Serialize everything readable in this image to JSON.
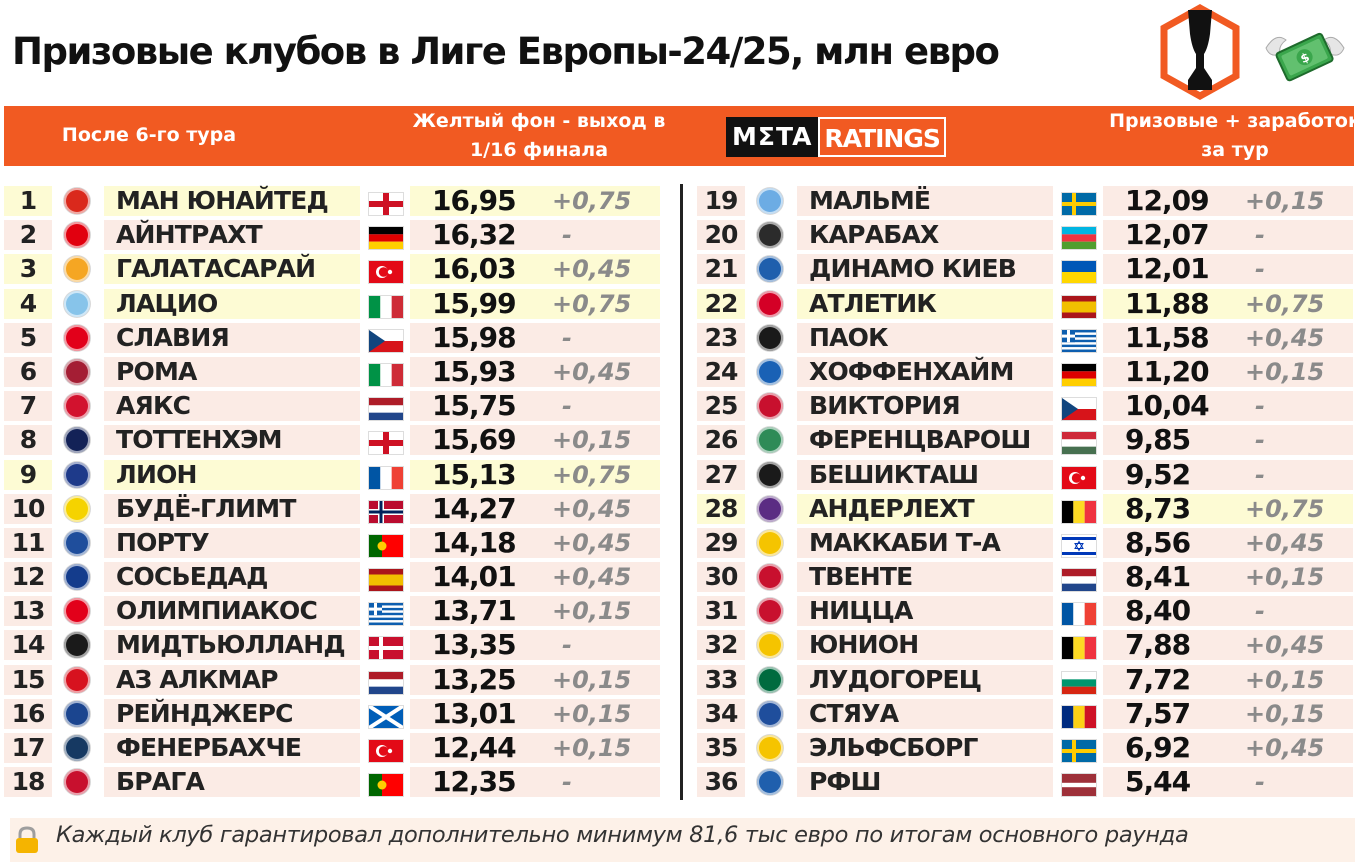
{
  "title": "Призовые клубов в Лиге Европы-24/25, млн евро",
  "header": {
    "after_round": "После 6-го тура",
    "yellow_note_line1": "Желтый фон - выход в",
    "yellow_note_line2": "1/16 финала",
    "brand_part1": "MΣTA",
    "brand_part2": "RATINGS",
    "prize_line1": "Призовые + заработок",
    "prize_line2": "за тур"
  },
  "colors": {
    "accent": "#f15a22",
    "row_yellow": "#fdfbd4",
    "row_pink": "#fbebe5"
  },
  "footer": {
    "icon": "lock-icon",
    "text": "Каждый клуб гарантировал дополнительно минимум 81,6 тыс евро по итогам основного раунда"
  },
  "rows": [
    {
      "rank": "1",
      "club": "МАН ЮНАЙТЕД",
      "value": "16,95",
      "inc": "+0,75",
      "hl": true,
      "crest": "#da291c",
      "flag": "eng"
    },
    {
      "rank": "2",
      "club": "АЙНТРАХТ",
      "value": "16,32",
      "inc": "-",
      "hl": false,
      "crest": "#e1000f",
      "flag": "de"
    },
    {
      "rank": "3",
      "club": "ГАЛАТАСАРАЙ",
      "value": "16,03",
      "inc": "+0,45",
      "hl": true,
      "crest": "#f5a623",
      "flag": "tr"
    },
    {
      "rank": "4",
      "club": "ЛАЦИО",
      "value": "15,99",
      "inc": "+0,75",
      "hl": true,
      "crest": "#87c4ea",
      "flag": "it"
    },
    {
      "rank": "5",
      "club": "СЛАВИЯ",
      "value": "15,98",
      "inc": "-",
      "hl": false,
      "crest": "#e2001a",
      "flag": "cz"
    },
    {
      "rank": "6",
      "club": "РОМА",
      "value": "15,93",
      "inc": "+0,45",
      "hl": false,
      "crest": "#a41e34",
      "flag": "it"
    },
    {
      "rank": "7",
      "club": "АЯКС",
      "value": "15,75",
      "inc": "-",
      "hl": false,
      "crest": "#d2122e",
      "flag": "nl"
    },
    {
      "rank": "8",
      "club": "ТОТТЕНХЭМ",
      "value": "15,69",
      "inc": "+0,15",
      "hl": false,
      "crest": "#132257",
      "flag": "eng"
    },
    {
      "rank": "9",
      "club": "ЛИОН",
      "value": "15,13",
      "inc": "+0,75",
      "hl": true,
      "crest": "#1e3a8a",
      "flag": "fr"
    },
    {
      "rank": "10",
      "club": "БУДЁ-ГЛИМТ",
      "value": "14,27",
      "inc": "+0,45",
      "hl": false,
      "crest": "#f5d300",
      "flag": "no"
    },
    {
      "rank": "11",
      "club": "ПОРТУ",
      "value": "14,18",
      "inc": "+0,45",
      "hl": false,
      "crest": "#1f4e9c",
      "flag": "pt"
    },
    {
      "rank": "12",
      "club": "СОСЬЕДАД",
      "value": "14,01",
      "inc": "+0,45",
      "hl": false,
      "crest": "#143c8c",
      "flag": "es"
    },
    {
      "rank": "13",
      "club": "ОЛИМПИАКОС",
      "value": "13,71",
      "inc": "+0,15",
      "hl": false,
      "crest": "#e2001a",
      "flag": "gr"
    },
    {
      "rank": "14",
      "club": "МИДТЬЮЛЛАНД",
      "value": "13,35",
      "inc": "-",
      "hl": false,
      "crest": "#1a1a1a",
      "flag": "dk"
    },
    {
      "rank": "15",
      "club": "АЗ АЛКМАР",
      "value": "13,25",
      "inc": "+0,15",
      "hl": false,
      "crest": "#d7121f",
      "flag": "nl"
    },
    {
      "rank": "16",
      "club": "РЕЙНДЖЕРС",
      "value": "13,01",
      "inc": "+0,15",
      "hl": false,
      "crest": "#1b458f",
      "flag": "sco"
    },
    {
      "rank": "17",
      "club": "ФЕНЕРБАХЧЕ",
      "value": "12,44",
      "inc": "+0,15",
      "hl": false,
      "crest": "#163962",
      "flag": "tr"
    },
    {
      "rank": "18",
      "club": "БРАГА",
      "value": "12,35",
      "inc": "-",
      "hl": false,
      "crest": "#c8102e",
      "flag": "pt"
    },
    {
      "rank": "19",
      "club": "МАЛЬМЁ",
      "value": "12,09",
      "inc": "+0,15",
      "hl": false,
      "crest": "#6cace4",
      "flag": "se"
    },
    {
      "rank": "20",
      "club": "КАРАБАХ",
      "value": "12,07",
      "inc": "-",
      "hl": false,
      "crest": "#2b2b2b",
      "flag": "az"
    },
    {
      "rank": "21",
      "club": "ДИНАМО КИЕВ",
      "value": "12,01",
      "inc": "-",
      "hl": false,
      "crest": "#1f5fad",
      "flag": "ua"
    },
    {
      "rank": "22",
      "club": "АТЛЕТИК",
      "value": "11,88",
      "inc": "+0,75",
      "hl": true,
      "crest": "#d40026",
      "flag": "es"
    },
    {
      "rank": "23",
      "club": "ПАОК",
      "value": "11,58",
      "inc": "+0,45",
      "hl": false,
      "crest": "#1a1a1a",
      "flag": "gr"
    },
    {
      "rank": "24",
      "club": "ХОФФЕНХАЙМ",
      "value": "11,20",
      "inc": "+0,15",
      "hl": false,
      "crest": "#1961b5",
      "flag": "de"
    },
    {
      "rank": "25",
      "club": "ВИКТОРИЯ",
      "value": "10,04",
      "inc": "-",
      "hl": false,
      "crest": "#c8102e",
      "flag": "cz"
    },
    {
      "rank": "26",
      "club": "ФЕРЕНЦВАРОШ",
      "value": "9,85",
      "inc": "-",
      "hl": false,
      "crest": "#2e8b57",
      "flag": "hu"
    },
    {
      "rank": "27",
      "club": "БЕШИКТАШ",
      "value": "9,52",
      "inc": "-",
      "hl": false,
      "crest": "#1a1a1a",
      "flag": "tr"
    },
    {
      "rank": "28",
      "club": "АНДЕРЛЕХТ",
      "value": "8,73",
      "inc": "+0,75",
      "hl": true,
      "crest": "#5b2c83",
      "flag": "be"
    },
    {
      "rank": "29",
      "club": "МАККАБИ Т-А",
      "value": "8,56",
      "inc": "+0,45",
      "hl": false,
      "crest": "#f5c400",
      "flag": "il"
    },
    {
      "rank": "30",
      "club": "ТВЕНТЕ",
      "value": "8,41",
      "inc": "+0,15",
      "hl": false,
      "crest": "#c8102e",
      "flag": "nl"
    },
    {
      "rank": "31",
      "club": "НИЦЦА",
      "value": "8,40",
      "inc": "-",
      "hl": false,
      "crest": "#c8102e",
      "flag": "fr"
    },
    {
      "rank": "32",
      "club": "ЮНИОН",
      "value": "7,88",
      "inc": "+0,45",
      "hl": false,
      "crest": "#f5c400",
      "flag": "be"
    },
    {
      "rank": "33",
      "club": "ЛУДОГОРЕЦ",
      "value": "7,72",
      "inc": "+0,15",
      "hl": false,
      "crest": "#006b3f",
      "flag": "bg"
    },
    {
      "rank": "34",
      "club": "СТЯУА",
      "value": "7,57",
      "inc": "+0,15",
      "hl": false,
      "crest": "#1f4e9c",
      "flag": "ro"
    },
    {
      "rank": "35",
      "club": "ЭЛЬФСБОРГ",
      "value": "6,92",
      "inc": "+0,45",
      "hl": false,
      "crest": "#f5c400",
      "flag": "se"
    },
    {
      "rank": "36",
      "club": "РФШ",
      "value": "5,44",
      "inc": "-",
      "hl": false,
      "crest": "#1f5fad",
      "flag": "lv"
    }
  ]
}
